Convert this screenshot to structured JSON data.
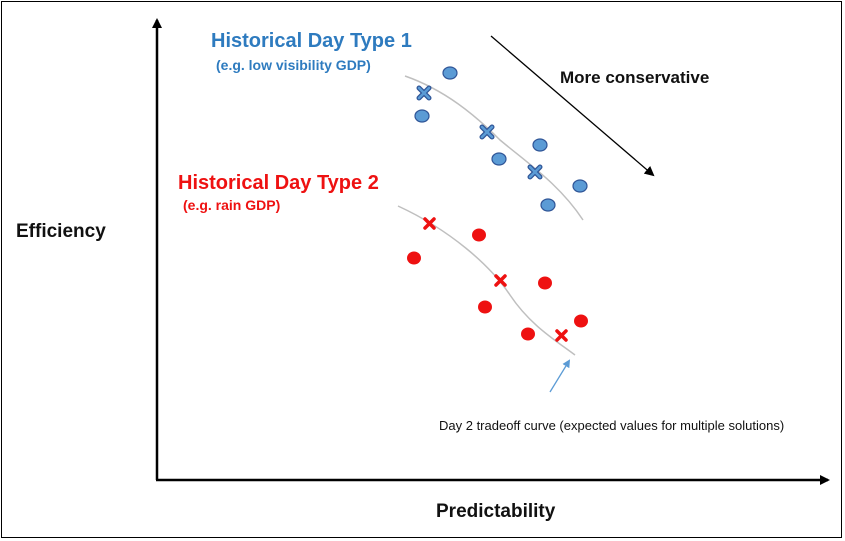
{
  "labels": {
    "type1_title": "Historical Day Type 1",
    "type1_subtitle": "(e.g. low visibility GDP)",
    "type2_title": "Historical Day Type 2",
    "type2_subtitle": "(e.g. rain GDP)",
    "conservative": "More conservative",
    "y_axis": "Efficiency",
    "x_axis": "Predictability",
    "curve_note": "Day 2 tradeoff curve (expected values for multiple solutions)"
  },
  "colors": {
    "type1": "#5b9bd5",
    "type1_text": "#2e7bbf",
    "type2": "#ee1111",
    "curve": "#bfbfbf",
    "note_arrow": "#5b9bd5",
    "axis": "#000000"
  },
  "icons": {
    "circle": "filled-circle-marker",
    "cross": "x-marker",
    "arrow": "arrow"
  }
}
